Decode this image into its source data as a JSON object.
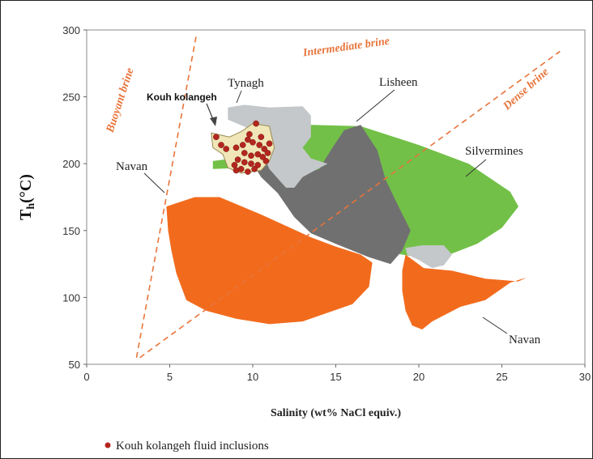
{
  "chart_data": {
    "type": "scatter",
    "xlabel": "Salinity (wt% NaCl equiv.)",
    "ylabel_main": "T",
    "ylabel_sub": "h",
    "ylabel_unit": "(°C)",
    "xlim": [
      0,
      30
    ],
    "ylim": [
      50,
      300
    ],
    "x_ticks": [
      "0",
      "5",
      "10",
      "15",
      "20",
      "25",
      "30"
    ],
    "y_ticks": [
      "50",
      "100",
      "150",
      "200",
      "250",
      "300"
    ],
    "grid": false,
    "colors": {
      "navan": "#f26b1d",
      "silvermines": "#72c048",
      "lisheen": "#707070",
      "tynagh": "#c4c8ca",
      "kouh_zone": "#f0e6b8",
      "points": "#b3261e",
      "brine_lines": "#e8743a"
    },
    "fields": [
      {
        "name": "Navan",
        "color": "#f26b1d",
        "outline": [
          [
            4.8,
            168
          ],
          [
            6.5,
            175
          ],
          [
            8,
            175
          ],
          [
            10.5,
            162
          ],
          [
            13.5,
            145
          ],
          [
            15,
            138
          ],
          [
            16.5,
            132
          ],
          [
            17.2,
            126
          ],
          [
            17,
            108
          ],
          [
            16,
            95
          ],
          [
            13,
            82
          ],
          [
            11,
            80
          ],
          [
            9,
            84
          ],
          [
            7.2,
            90
          ],
          [
            6,
            98
          ],
          [
            5.4,
            118
          ],
          [
            5.1,
            135
          ],
          [
            4.9,
            150
          ]
        ]
      },
      {
        "name": "Navan",
        "color": "#f26b1d",
        "outline": [
          [
            19.2,
            132
          ],
          [
            20.3,
            122
          ],
          [
            22,
            120
          ],
          [
            24,
            114
          ],
          [
            26,
            112
          ],
          [
            26.5,
            115
          ],
          [
            25.5,
            111
          ],
          [
            24,
            98
          ],
          [
            22.5,
            93
          ],
          [
            20.8,
            82
          ],
          [
            20.2,
            76
          ],
          [
            19.6,
            79
          ],
          [
            19.2,
            90
          ],
          [
            19,
            105
          ],
          [
            19,
            120
          ]
        ]
      },
      {
        "name": "Silvermines",
        "color": "#72c048",
        "outline": [
          [
            7.6,
            202
          ],
          [
            9.5,
            205
          ],
          [
            11.5,
            219
          ],
          [
            13.5,
            229
          ],
          [
            16.5,
            228
          ],
          [
            20,
            214
          ],
          [
            23,
            200
          ],
          [
            25.5,
            179
          ],
          [
            26,
            168
          ],
          [
            25,
            152
          ],
          [
            23.5,
            140
          ],
          [
            21,
            128
          ],
          [
            18,
            134
          ],
          [
            15.5,
            148
          ],
          [
            14.5,
            156
          ],
          [
            13.5,
            172
          ],
          [
            12.2,
            192
          ],
          [
            9.5,
            197
          ],
          [
            7.6,
            196
          ]
        ]
      },
      {
        "name": "Lisheen",
        "color": "#707070",
        "outline": [
          [
            10,
            200
          ],
          [
            11,
            202
          ],
          [
            13,
            192
          ],
          [
            14,
            196
          ],
          [
            14.8,
            212
          ],
          [
            15.5,
            225
          ],
          [
            16.5,
            229
          ],
          [
            17.5,
            210
          ],
          [
            18,
            188
          ],
          [
            18.7,
            170
          ],
          [
            19.5,
            150
          ],
          [
            19,
            135
          ],
          [
            18.3,
            125
          ],
          [
            17,
            130
          ],
          [
            15,
            140
          ],
          [
            13.5,
            148
          ],
          [
            12.5,
            160
          ],
          [
            11.5,
            178
          ],
          [
            10.5,
            190
          ]
        ]
      },
      {
        "name": "Tynagh",
        "color": "#c4c8ca",
        "outline": [
          [
            8.5,
            242
          ],
          [
            9.5,
            244
          ],
          [
            11,
            242
          ],
          [
            13,
            243
          ],
          [
            13.5,
            236
          ],
          [
            13.5,
            220
          ],
          [
            13,
            212
          ],
          [
            13.5,
            204
          ],
          [
            14.5,
            200
          ],
          [
            15.5,
            210
          ],
          [
            14.5,
            200
          ],
          [
            13,
            190
          ],
          [
            12.5,
            182
          ],
          [
            12,
            182
          ],
          [
            11,
            196
          ],
          [
            10.5,
            210
          ],
          [
            10,
            225
          ],
          [
            8.5,
            233
          ]
        ]
      },
      {
        "name": "Tynagh",
        "color": "#c4c8ca",
        "outline": [
          [
            19.2,
            137
          ],
          [
            20.2,
            139
          ],
          [
            21.5,
            139
          ],
          [
            22,
            132
          ],
          [
            21.5,
            124
          ],
          [
            20.8,
            122
          ],
          [
            20,
            128
          ],
          [
            19.3,
            132
          ]
        ]
      }
    ],
    "kouh_zone_outline": [
      [
        7.5,
        223
      ],
      [
        8.6,
        220
      ],
      [
        9.3,
        224
      ],
      [
        10,
        230
      ],
      [
        11,
        228
      ],
      [
        11.3,
        212
      ],
      [
        11,
        202
      ],
      [
        10.5,
        195
      ],
      [
        9.3,
        193
      ],
      [
        8.5,
        197
      ],
      [
        8.2,
        207
      ],
      [
        7.6,
        212
      ]
    ],
    "kouh_points": [
      {
        "x": 7.8,
        "y": 220
      },
      {
        "x": 8.1,
        "y": 214
      },
      {
        "x": 8.4,
        "y": 211
      },
      {
        "x": 10.2,
        "y": 230
      },
      {
        "x": 9.0,
        "y": 212
      },
      {
        "x": 9.4,
        "y": 214
      },
      {
        "x": 9.7,
        "y": 218
      },
      {
        "x": 10.0,
        "y": 216
      },
      {
        "x": 10.4,
        "y": 214
      },
      {
        "x": 10.7,
        "y": 211
      },
      {
        "x": 9.5,
        "y": 208
      },
      {
        "x": 9.9,
        "y": 206
      },
      {
        "x": 10.3,
        "y": 207
      },
      {
        "x": 10.6,
        "y": 205
      },
      {
        "x": 10.9,
        "y": 208
      },
      {
        "x": 9.1,
        "y": 203
      },
      {
        "x": 9.5,
        "y": 201
      },
      {
        "x": 9.9,
        "y": 200
      },
      {
        "x": 10.3,
        "y": 199
      },
      {
        "x": 10.8,
        "y": 202
      },
      {
        "x": 8.9,
        "y": 199
      },
      {
        "x": 9.3,
        "y": 196
      },
      {
        "x": 9.7,
        "y": 194
      },
      {
        "x": 10.1,
        "y": 196
      },
      {
        "x": 11.0,
        "y": 215
      },
      {
        "x": 9.0,
        "y": 195
      },
      {
        "x": 10.5,
        "y": 220
      },
      {
        "x": 9.8,
        "y": 222
      }
    ],
    "brine_lines": [
      {
        "from": [
          3.0,
          55
        ],
        "to": [
          6.6,
          296
        ]
      },
      {
        "from": [
          3.2,
          55
        ],
        "to": [
          28.5,
          284
        ]
      }
    ],
    "labels": {
      "buoyant_brine": "Buoyant brine",
      "intermediate_brine": "Intermediate brine",
      "dense_brine": "Dense brine",
      "tynagh": "Tynagh",
      "lisheen": "Lisheen",
      "kouh_kolangeh": "Kouh kolangeh",
      "silvermines": "Silvermines",
      "navan_upper": "Navan",
      "navan_lower": "Navan"
    },
    "legend": {
      "label": "Kouh kolangeh fluid inclusions",
      "placement": "bottom-left"
    }
  }
}
